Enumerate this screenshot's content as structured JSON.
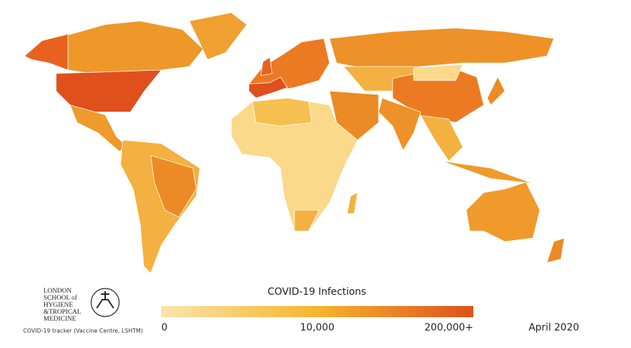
{
  "logo": {
    "lines": [
      "LONDON",
      "SCHOOL of",
      "HYGIENE",
      "&TROPICAL",
      "MEDICINE"
    ]
  },
  "credit": "COVID-19 tracker (Vaccine Centre, LSHTM)",
  "legend": {
    "title": "COVID-19 Infections",
    "colors": [
      "#fbe4aa",
      "#f5b52e",
      "#e0501c"
    ],
    "ticks": [
      0,
      {
        "value": 10000,
        "label": "10,000"
      },
      {
        "value": 200000,
        "label": "200,000+"
      }
    ],
    "date": "April 2020"
  }
}
